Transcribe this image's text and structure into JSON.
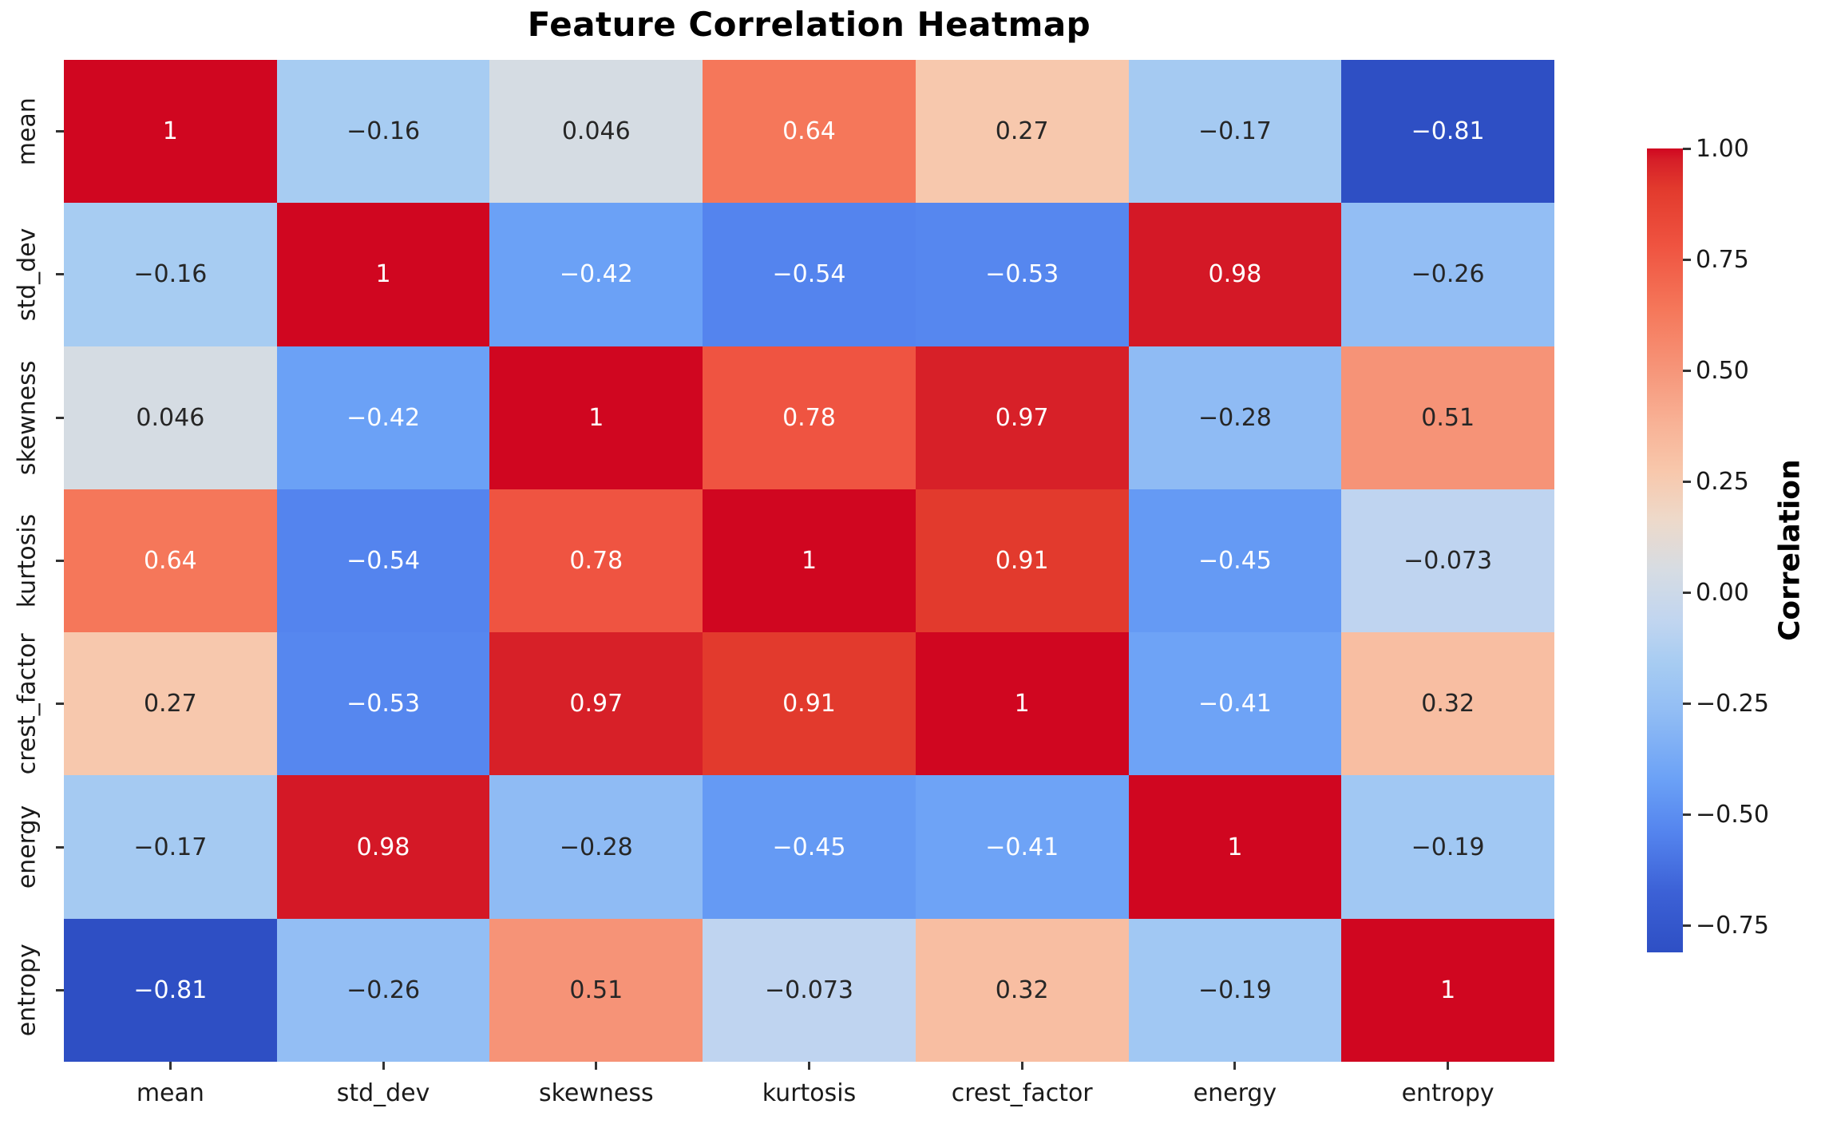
{
  "figure": {
    "background": "#ffffff"
  },
  "colors": {
    "cell_text_dark": "#262626",
    "cell_text_light": "#ffffff",
    "axis_text": "#1a1a1a",
    "title_color": "#000000",
    "tick_color": "#333333"
  },
  "chart_data": {
    "type": "heatmap",
    "title": "Feature Correlation Heatmap",
    "x_categories": [
      "mean",
      "std_dev",
      "skewness",
      "kurtosis",
      "crest_factor",
      "energy",
      "entropy"
    ],
    "y_categories": [
      "mean",
      "std_dev",
      "skewness",
      "kurtosis",
      "crest_factor",
      "energy",
      "entropy"
    ],
    "values": [
      [
        1.0,
        -0.16,
        0.046,
        0.64,
        0.27,
        -0.17,
        -0.81
      ],
      [
        -0.16,
        1.0,
        -0.42,
        -0.54,
        -0.53,
        0.98,
        -0.26
      ],
      [
        0.046,
        -0.42,
        1.0,
        0.78,
        0.97,
        -0.28,
        0.51
      ],
      [
        0.64,
        -0.54,
        0.78,
        1.0,
        0.91,
        -0.45,
        -0.073
      ],
      [
        0.27,
        -0.53,
        0.97,
        0.91,
        1.0,
        -0.41,
        0.32
      ],
      [
        -0.17,
        0.98,
        -0.28,
        -0.45,
        -0.41,
        1.0,
        -0.19
      ],
      [
        -0.81,
        -0.26,
        0.51,
        -0.073,
        0.32,
        -0.19,
        1.0
      ]
    ],
    "cell_labels": [
      [
        "1",
        "−0.16",
        "0.046",
        "0.64",
        "0.27",
        "−0.17",
        "−0.81"
      ],
      [
        "−0.16",
        "1",
        "−0.42",
        "−0.54",
        "−0.53",
        "0.98",
        "−0.26"
      ],
      [
        "0.046",
        "−0.42",
        "1",
        "0.78",
        "0.97",
        "−0.28",
        "0.51"
      ],
      [
        "0.64",
        "−0.54",
        "0.78",
        "1",
        "0.91",
        "−0.45",
        "−0.073"
      ],
      [
        "0.27",
        "−0.53",
        "0.97",
        "0.91",
        "1",
        "−0.41",
        "0.32"
      ],
      [
        "−0.17",
        "0.98",
        "−0.28",
        "−0.45",
        "−0.41",
        "1",
        "−0.19"
      ],
      [
        "−0.81",
        "−0.26",
        "0.51",
        "−0.073",
        "0.32",
        "−0.19",
        "1"
      ]
    ],
    "vmin": -0.81,
    "vmax": 1.0,
    "colormap_name": "coolwarm",
    "colormap_stops": [
      [
        0.0,
        "#2e4fc4"
      ],
      [
        0.075,
        "#3c61d6"
      ],
      [
        0.149,
        "#5484ee"
      ],
      [
        0.215,
        "#6ba1f6"
      ],
      [
        0.3,
        "#92bdf4"
      ],
      [
        0.36,
        "#a7ccf2"
      ],
      [
        0.41,
        "#c0d5f0"
      ],
      [
        0.475,
        "#d6dce3"
      ],
      [
        0.54,
        "#eed9c9"
      ],
      [
        0.6,
        "#f8c7ab"
      ],
      [
        0.66,
        "#f8b195"
      ],
      [
        0.73,
        "#f69377"
      ],
      [
        0.8,
        "#f5775a"
      ],
      [
        0.88,
        "#ef5340"
      ],
      [
        0.95,
        "#e23a2d"
      ],
      [
        0.985,
        "#d61f28"
      ],
      [
        1.0,
        "#d00620"
      ]
    ],
    "luminance_threshold": 0.408,
    "grid_lines": false,
    "legend_position": "right-colorbar",
    "colorbar": {
      "label": "Correlation",
      "ticks": [
        {
          "value": 1.0,
          "label": "1.00"
        },
        {
          "value": 0.75,
          "label": "0.75"
        },
        {
          "value": 0.5,
          "label": "0.50"
        },
        {
          "value": 0.25,
          "label": "0.25"
        },
        {
          "value": 0.0,
          "label": "0.00"
        },
        {
          "value": -0.25,
          "label": "−0.25"
        },
        {
          "value": -0.5,
          "label": "−0.50"
        },
        {
          "value": -0.75,
          "label": "−0.75"
        }
      ]
    }
  }
}
